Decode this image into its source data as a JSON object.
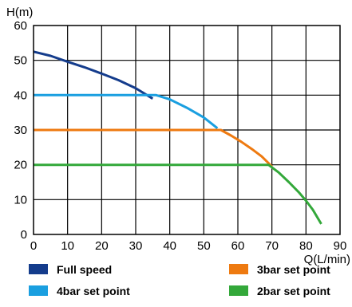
{
  "chart_data": {
    "type": "line",
    "ylabel": "H(m)",
    "xlabel": "Q(L/min)",
    "xlim": [
      0,
      90
    ],
    "ylim": [
      0,
      60
    ],
    "x_ticks": [
      0,
      10,
      20,
      30,
      40,
      50,
      60,
      70,
      80,
      90
    ],
    "y_ticks": [
      0,
      10,
      20,
      30,
      40,
      50,
      60
    ],
    "grid": true,
    "legend_placement": "bottom",
    "series": [
      {
        "name": "Full speed",
        "color": "#143c8c",
        "points": [
          [
            0,
            52.5
          ],
          [
            5,
            51.3
          ],
          [
            10,
            49.6
          ],
          [
            15,
            48.0
          ],
          [
            20,
            46.2
          ],
          [
            25,
            44.3
          ],
          [
            30,
            42.0
          ],
          [
            35,
            39.0
          ]
        ]
      },
      {
        "name": "4bar set point",
        "color": "#1a9fe0",
        "points": [
          [
            0,
            40
          ],
          [
            36,
            40
          ],
          [
            40,
            38.8
          ],
          [
            45,
            36.4
          ],
          [
            50,
            33.6
          ],
          [
            54,
            30.5
          ]
        ]
      },
      {
        "name": "3bar set point",
        "color": "#ee7a10",
        "points": [
          [
            0,
            30
          ],
          [
            55,
            30
          ],
          [
            58,
            28.4
          ],
          [
            61,
            26.6
          ],
          [
            64,
            24.6
          ],
          [
            67,
            22.4
          ],
          [
            70,
            19.5
          ]
        ]
      },
      {
        "name": "2bar set point",
        "color": "#33a83a",
        "points": [
          [
            0,
            20
          ],
          [
            69,
            20
          ],
          [
            72,
            17.8
          ],
          [
            75,
            15.0
          ],
          [
            78,
            12.0
          ],
          [
            80,
            9.7
          ],
          [
            82,
            7.1
          ],
          [
            84.5,
            3.0
          ]
        ]
      }
    ]
  }
}
